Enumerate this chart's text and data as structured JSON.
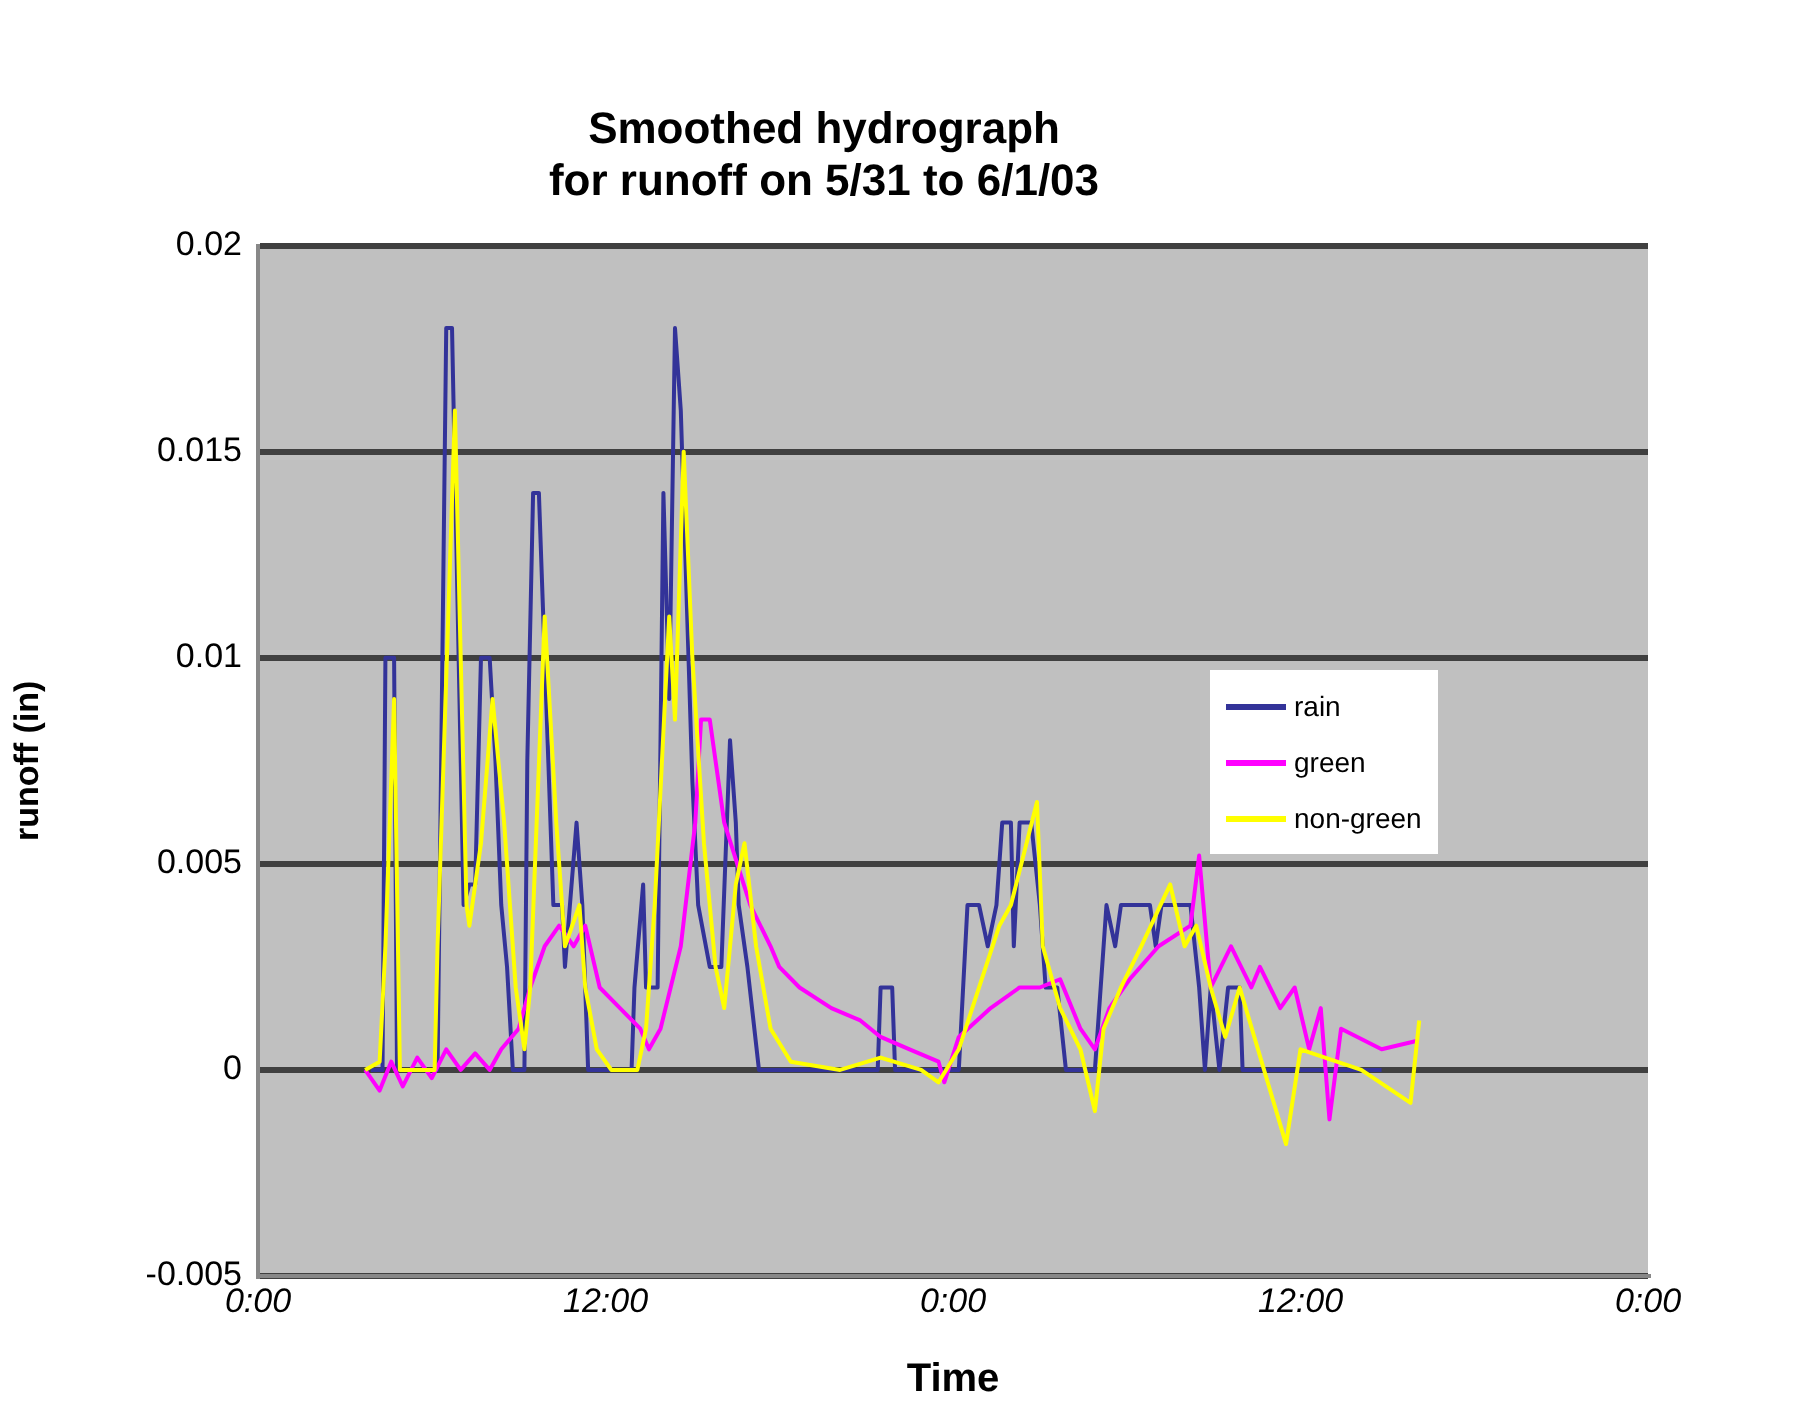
{
  "chart_data": {
    "type": "line",
    "title": "Smoothed hydrograph\nfor runoff on 5/31 to 6/1/03",
    "xlabel": "Time",
    "ylabel": "runoff (in)",
    "xlim": [
      "--05-31T00:00",
      "--06-02T00:00"
    ],
    "xticks": [
      {
        "value": "--05-31T00:00",
        "label": "0:00"
      },
      {
        "value": "--05-31T12:00",
        "label": "12:00"
      },
      {
        "value": "--06-01T00:00",
        "label": "0:00"
      },
      {
        "value": "--06-01T12:00",
        "label": "12:00"
      },
      {
        "value": "--06-02T00:00",
        "label": "0:00"
      }
    ],
    "ylim": [
      -0.005,
      0.02
    ],
    "yticks": [
      -0.005,
      0,
      0.005,
      0.01,
      0.015,
      0.02
    ],
    "grid": "y",
    "legend": "right",
    "series": [
      {
        "name": "rain",
        "color": "#333399",
        "x": [
          "--05-31T03:54",
          "--05-31T04:18",
          "--05-31T04:24",
          "--05-31T04:42",
          "--05-31T04:48",
          "--05-31T06:12",
          "--05-31T06:30",
          "--05-31T06:42",
          "--05-31T07:06",
          "--05-31T07:18",
          "--05-31T07:30",
          "--05-31T07:42",
          "--05-31T08:00",
          "--05-31T08:12",
          "--05-31T08:24",
          "--05-31T08:36",
          "--05-31T08:48",
          "--05-31T09:12",
          "--05-31T09:18",
          "--05-31T09:30",
          "--05-31T09:42",
          "--05-31T10:12",
          "--05-31T10:30",
          "--05-31T10:36",
          "--05-31T11:00",
          "--05-31T11:12",
          "--05-31T11:24",
          "--05-31T12:54",
          "--05-31T13:00",
          "--05-31T13:18",
          "--05-31T13:24",
          "--05-31T13:48",
          "--05-31T14:00",
          "--05-31T14:12",
          "--05-31T14:24",
          "--05-31T14:36",
          "--05-31T15:00",
          "--05-31T15:12",
          "--05-31T15:36",
          "--05-31T16:00",
          "--05-31T16:18",
          "--05-31T16:30",
          "--05-31T16:36",
          "--05-31T16:54",
          "--05-31T17:18",
          "--05-31T21:24",
          "--05-31T21:30",
          "--05-31T21:54",
          "--05-31T22:00",
          "--06-01T00:12",
          "--06-01T00:30",
          "--06-01T00:54",
          "--06-01T01:12",
          "--06-01T01:30",
          "--06-01T01:42",
          "--06-01T02:00",
          "--06-01T02:06",
          "--06-01T02:18",
          "--06-01T02:42",
          "--06-01T03:00",
          "--06-01T03:12",
          "--06-01T03:36",
          "--06-01T03:54",
          "--06-01T04:54",
          "--06-01T05:18",
          "--06-01T05:36",
          "--06-01T05:48",
          "--06-01T06:48",
          "--06-01T07:00",
          "--06-01T07:12",
          "--06-01T08:12",
          "--06-01T08:30",
          "--06-01T08:42",
          "--06-01T08:54",
          "--06-01T09:12",
          "--06-01T09:30",
          "--06-01T09:54",
          "--06-01T10:00",
          "--06-01T14:48"
        ],
        "values": [
          0,
          0,
          0.01,
          0.01,
          0,
          0,
          0.018,
          0.018,
          0.004,
          0.0045,
          0.0045,
          0.01,
          0.01,
          0.0075,
          0.004,
          0.0025,
          0,
          0,
          0.0075,
          0.014,
          0.014,
          0.004,
          0.004,
          0.0025,
          0.006,
          0.004,
          0,
          0,
          0.002,
          0.0045,
          0.002,
          0.002,
          0.014,
          0.009,
          0.018,
          0.016,
          0.007,
          0.004,
          0.0025,
          0.0025,
          0.008,
          0.006,
          0.004,
          0.0025,
          0,
          0,
          0.002,
          0.002,
          0,
          0,
          0.004,
          0.004,
          0.003,
          0.004,
          0.006,
          0.006,
          0.003,
          0.006,
          0.006,
          0.004,
          0.002,
          0.002,
          0,
          0,
          0.004,
          0.003,
          0.004,
          0.004,
          0.003,
          0.004,
          0.004,
          0.002,
          0,
          0.002,
          0,
          0.002,
          0.002,
          0,
          0
        ]
      },
      {
        "name": "green",
        "color": "#ff00ff",
        "x": [
          "--05-31T03:42",
          "--05-31T04:12",
          "--05-31T04:36",
          "--05-31T05:00",
          "--05-31T05:30",
          "--05-31T06:00",
          "--05-31T06:30",
          "--05-31T07:00",
          "--05-31T07:30",
          "--05-31T08:00",
          "--05-31T08:24",
          "--05-31T09:00",
          "--05-31T09:24",
          "--05-31T09:54",
          "--05-31T10:24",
          "--05-31T10:54",
          "--05-31T11:18",
          "--05-31T11:48",
          "--05-31T12:30",
          "--05-31T13:12",
          "--05-31T13:30",
          "--05-31T13:54",
          "--05-31T14:36",
          "--05-31T15:06",
          "--05-31T15:18",
          "--05-31T15:36",
          "--05-31T16:06",
          "--05-31T17:00",
          "--05-31T17:42",
          "--05-31T18:00",
          "--05-31T18:42",
          "--05-31T19:48",
          "--05-31T20:48",
          "--05-31T21:30",
          "--05-31T22:30",
          "--05-31T23:30",
          "--05-31T23:42",
          "--06-01T00:12",
          "--06-01T01:18",
          "--06-01T02:18",
          "--06-01T03:00",
          "--06-01T03:42",
          "--06-01T04:24",
          "--06-01T04:54",
          "--06-01T05:24",
          "--06-01T06:06",
          "--06-01T07:06",
          "--06-01T08:12",
          "--06-01T08:30",
          "--06-01T08:54",
          "--06-01T09:36",
          "--06-01T10:18",
          "--06-01T10:36",
          "--06-01T11:18",
          "--06-01T11:48",
          "--06-01T12:18",
          "--06-01T12:42",
          "--06-01T13:00",
          "--06-01T13:24",
          "--06-01T14:48",
          "--06-01T16:00"
        ],
        "values": [
          0,
          -0.0005,
          0.0002,
          -0.0004,
          0.0003,
          -0.0002,
          0.0005,
          0,
          0.0004,
          0,
          0.0005,
          0.001,
          0.002,
          0.003,
          0.0035,
          0.003,
          0.0035,
          0.002,
          0.0015,
          0.001,
          0.0005,
          0.001,
          0.003,
          0.006,
          0.0085,
          0.0085,
          0.006,
          0.004,
          0.003,
          0.0025,
          0.002,
          0.0015,
          0.0012,
          0.0008,
          0.0005,
          0.0002,
          -0.0003,
          0.0008,
          0.0015,
          0.002,
          0.002,
          0.0022,
          0.001,
          0.0005,
          0.0015,
          0.0022,
          0.003,
          0.0035,
          0.0052,
          0.002,
          0.003,
          0.002,
          0.0025,
          0.0015,
          0.002,
          0.0005,
          0.0015,
          -0.0012,
          0.001,
          0.0005,
          0.0007
        ]
      },
      {
        "name": "non-green",
        "color": "#ffff00",
        "x": [
          "--05-31T03:42",
          "--05-31T04:12",
          "--05-31T04:24",
          "--05-31T04:42",
          "--05-31T04:54",
          "--05-31T06:06",
          "--05-31T06:12",
          "--05-31T06:48",
          "--05-31T07:12",
          "--05-31T07:18",
          "--05-31T07:42",
          "--05-31T08:06",
          "--05-31T08:30",
          "--05-31T08:54",
          "--05-31T09:12",
          "--05-31T09:24",
          "--05-31T09:54",
          "--05-31T10:18",
          "--05-31T10:36",
          "--05-31T11:06",
          "--05-31T11:18",
          "--05-31T11:42",
          "--05-31T12:12",
          "--05-31T13:06",
          "--05-31T13:24",
          "--05-31T13:42",
          "--05-31T14:12",
          "--05-31T14:24",
          "--05-31T14:42",
          "--05-31T15:00",
          "--05-31T15:24",
          "--05-31T15:48",
          "--05-31T16:06",
          "--05-31T16:30",
          "--05-31T16:48",
          "--05-31T17:12",
          "--05-31T17:42",
          "--05-31T18:24",
          "--05-31T20:06",
          "--05-31T21:30",
          "--05-31T22:54",
          "--05-31T23:30",
          "--06-01T00:12",
          "--06-01T00:54",
          "--06-01T01:36",
          "--06-01T02:00",
          "--06-01T02:54",
          "--06-01T03:06",
          "--06-01T03:42",
          "--06-01T04:24",
          "--06-01T04:54",
          "--06-01T05:12",
          "--06-01T05:48",
          "--06-01T06:30",
          "--06-01T07:30",
          "--06-01T08:00",
          "--06-01T08:24",
          "--06-01T08:54",
          "--06-01T09:24",
          "--06-01T09:54",
          "--06-01T11:30",
          "--06-01T12:00",
          "--06-01T14:06",
          "--06-01T15:48",
          "--06-01T16:06"
        ],
        "values": [
          0,
          0.0002,
          0.003,
          0.009,
          0,
          0,
          0.003,
          0.016,
          0.004,
          0.0035,
          0.0055,
          0.009,
          0.006,
          0.002,
          0.0005,
          0.002,
          0.011,
          0.006,
          0.003,
          0.004,
          0.002,
          0.0005,
          0,
          0,
          0.001,
          0.004,
          0.011,
          0.0085,
          0.015,
          0.01,
          0.0055,
          0.0025,
          0.0015,
          0.0045,
          0.0055,
          0.003,
          0.001,
          0.0002,
          0,
          0.0003,
          0,
          -0.0003,
          0.0005,
          0.002,
          0.0035,
          0.004,
          0.0065,
          0.003,
          0.0015,
          0.0005,
          -0.001,
          0.001,
          0.002,
          0.003,
          0.0045,
          0.003,
          0.0035,
          0.002,
          0.0008,
          0.002,
          -0.0018,
          0.0005,
          0,
          -0.0008,
          0.0012
        ]
      }
    ]
  }
}
